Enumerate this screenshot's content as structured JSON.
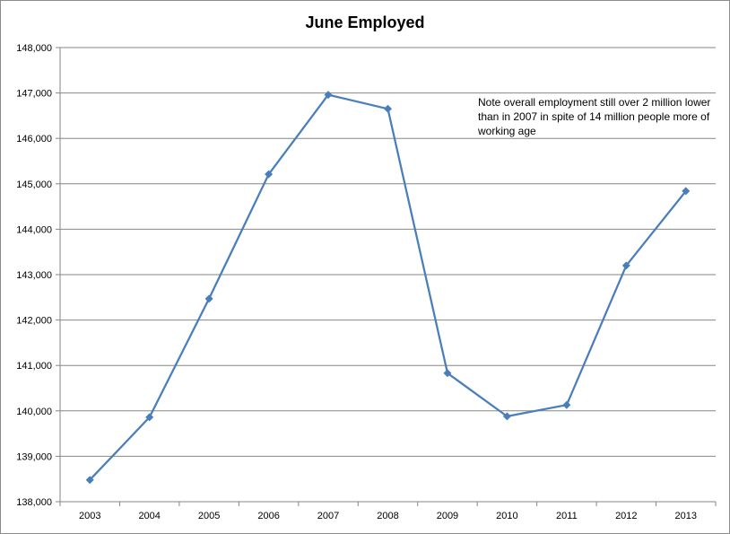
{
  "chart_data": {
    "type": "line",
    "title": "June Employed",
    "xlabel": "",
    "ylabel": "",
    "x": [
      "2003",
      "2004",
      "2005",
      "2006",
      "2007",
      "2008",
      "2009",
      "2010",
      "2011",
      "2012",
      "2013"
    ],
    "series": [
      {
        "values": [
          138480,
          139860,
          142470,
          145210,
          146960,
          146650,
          140830,
          139880,
          140130,
          143200,
          144840
        ],
        "color": "#4a7ebb",
        "marker": "diamond"
      }
    ],
    "ylim": [
      138000,
      148000
    ],
    "yticks": [
      138000,
      139000,
      140000,
      141000,
      142000,
      143000,
      144000,
      145000,
      146000,
      147000,
      148000
    ],
    "ytick_labels": [
      "138,000",
      "139,000",
      "140,000",
      "141,000",
      "142,000",
      "143,000",
      "144,000",
      "145,000",
      "146,000",
      "147,000",
      "148,000"
    ],
    "grid": true,
    "legend": "none",
    "annotation": "Note overall employment still over 2 million lower than in 2007 in spite of 14 million people more of working age"
  }
}
